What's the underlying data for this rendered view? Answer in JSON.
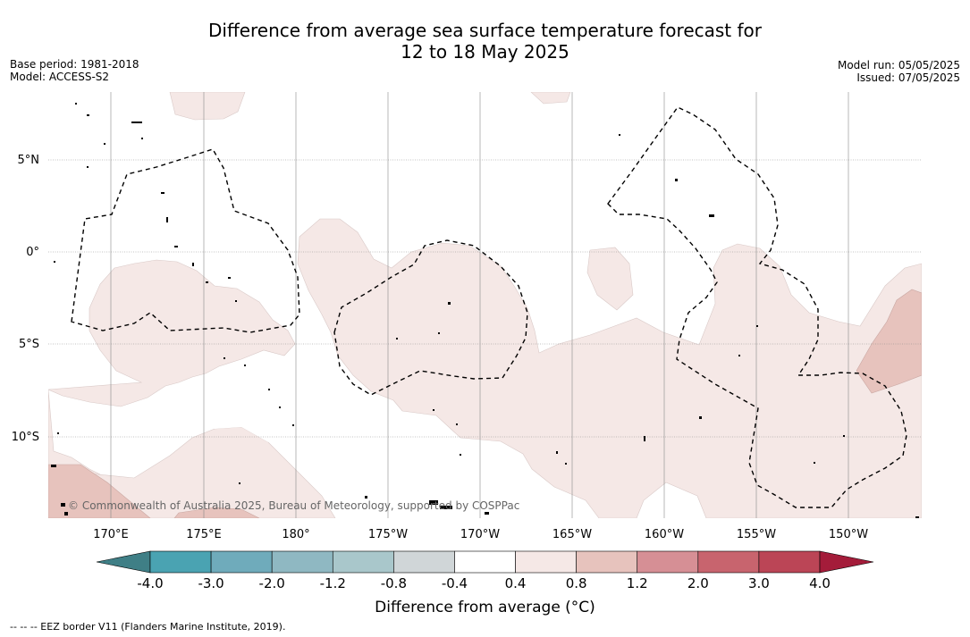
{
  "header": {
    "title_line1": "Difference from average sea surface temperature forecast for",
    "title_line2": "12 to 18 May 2025",
    "base_period": "Base period: 1981-2018",
    "model": "Model: ACCESS-S2",
    "model_run": "Model run: 05/05/2025",
    "issued": "Issued: 07/05/2025"
  },
  "map": {
    "lat_labels": [
      "5°N",
      "0°",
      "5°S",
      "10°S"
    ],
    "lon_labels": [
      "170°E",
      "175°E",
      "180°",
      "175°W",
      "170°W",
      "165°W",
      "160°W",
      "155°W",
      "150°W"
    ],
    "copyright": "© Commonwealth of Australia 2025, Bureau of Meteorology, supported by COSPPac"
  },
  "colorbar": {
    "tick_labels": [
      "-4.0",
      "-3.0",
      "-2.0",
      "-1.2",
      "-0.8",
      "-0.4",
      "0.4",
      "0.8",
      "1.2",
      "2.0",
      "3.0",
      "4.0"
    ],
    "colors": [
      "#3f7f86",
      "#4aa3b2",
      "#6fabbb",
      "#8fb8c2",
      "#a9c7cb",
      "#d0d6d8",
      "#ffffff",
      "#f5e8e6",
      "#e7c3bd",
      "#d68f95",
      "#c8646e",
      "#bb4556",
      "#a41c3a"
    ],
    "title": "Difference from average (°C)"
  },
  "legend_note": "--  --  -- EEZ border V11 (Flanders Marine Institute, 2019).",
  "colors": {
    "anomaly_light": "#f5e8e6",
    "anomaly_medium": "#e7c3bd",
    "grid": "#888888",
    "eez": "#000000"
  }
}
